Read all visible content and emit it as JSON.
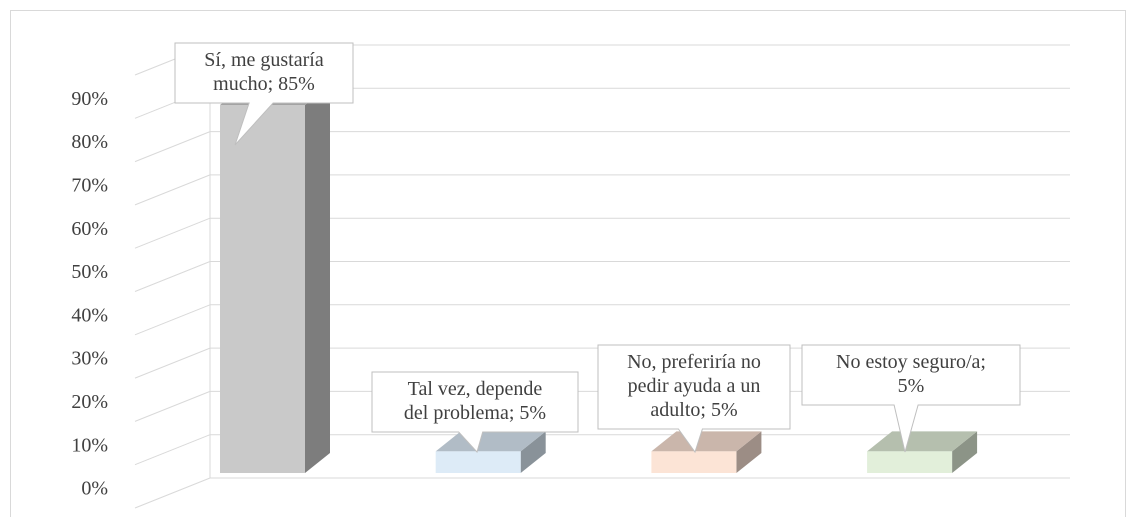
{
  "chart_data": {
    "type": "bar3d",
    "values": [
      85,
      5,
      5,
      5
    ],
    "value_labels": [
      [
        "Sí, me gustaría",
        "mucho; 85%"
      ],
      [
        "Tal vez, depende",
        "del problema; 5%"
      ],
      [
        "No, preferiría no",
        "pedir ayuda a un",
        "adulto; 5%"
      ],
      [
        "No estoy seguro/a;",
        "5%"
      ]
    ],
    "colors": [
      "#c9c9c9",
      "#ddebf7",
      "#fce4d6",
      "#e2efda"
    ],
    "ylim": [
      0,
      100
    ],
    "yticks": [
      {
        "value": 0,
        "label": "0%"
      },
      {
        "value": 10,
        "label": "10%"
      },
      {
        "value": 20,
        "label": "20%"
      },
      {
        "value": 30,
        "label": "30%"
      },
      {
        "value": 40,
        "label": "40%"
      },
      {
        "value": 50,
        "label": "50%"
      },
      {
        "value": 60,
        "label": "60%"
      },
      {
        "value": 70,
        "label": "70%"
      },
      {
        "value": 80,
        "label": "80%"
      },
      {
        "value": 90,
        "label": "90%"
      }
    ],
    "grid": true
  }
}
